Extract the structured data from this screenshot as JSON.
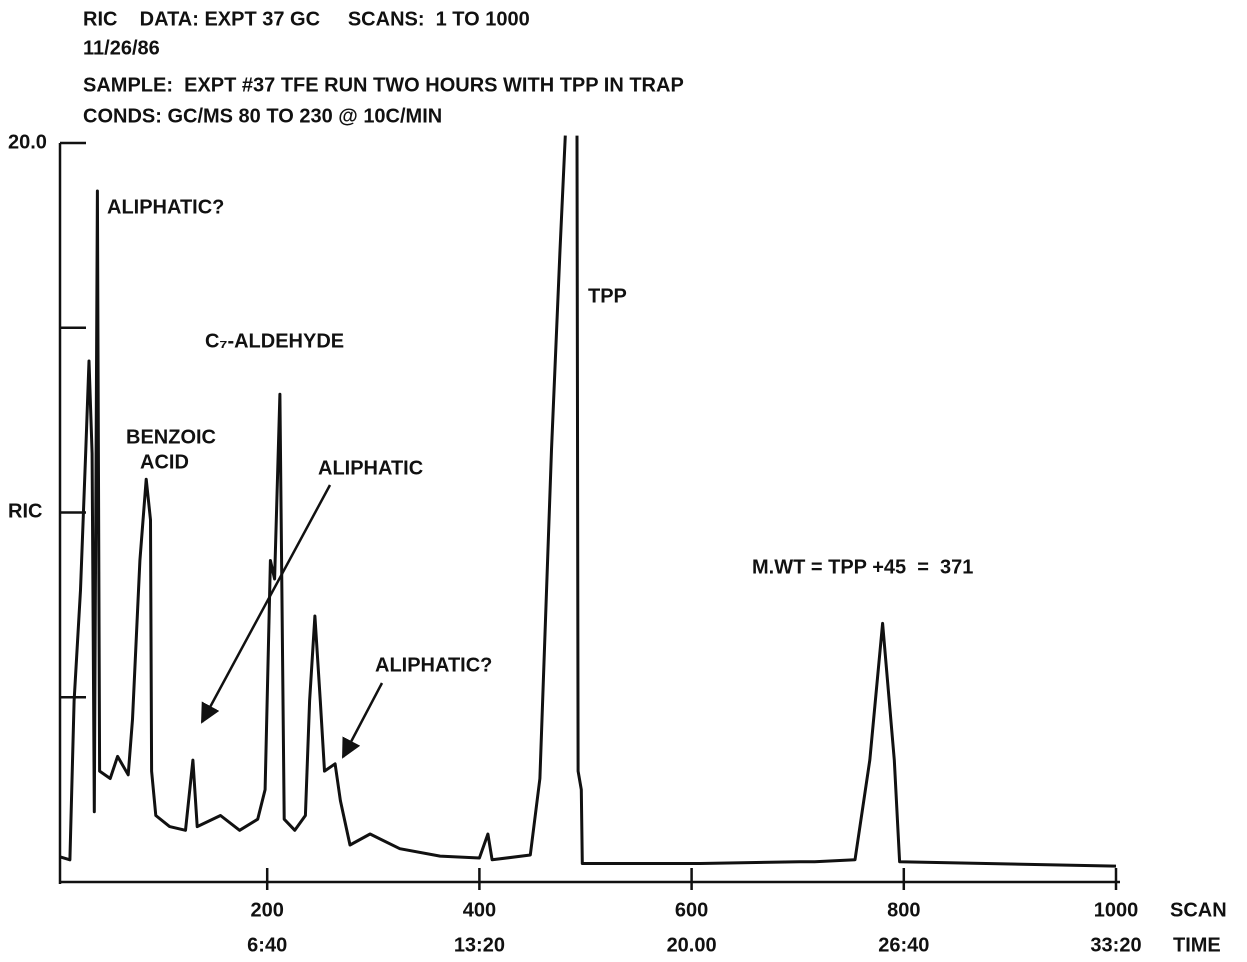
{
  "chart_data": {
    "type": "line",
    "title_lines": [
      "RIC    DATA: EXPT 37 GC     SCANS:  1 TO 1000",
      "11/26/86",
      "SAMPLE:  EXPT #37 TFE RUN TWO HOURS WITH TPP IN TRAP",
      "CONDS: GC/MS 80 TO 230 @ 10C/MIN"
    ],
    "y_label": "RIC",
    "x_label": "SCAN",
    "x2_label": "TIME",
    "x": [
      5,
      14,
      18,
      24,
      29,
      32,
      35,
      37,
      40,
      42,
      52,
      59,
      69,
      73,
      80,
      86,
      90,
      91,
      95,
      108,
      123,
      130,
      134,
      156,
      174,
      191,
      198,
      203,
      207,
      212,
      216,
      226,
      236,
      240,
      245,
      250,
      254,
      264,
      269,
      278,
      297,
      325,
      363,
      400,
      408,
      412,
      448,
      457,
      468,
      476,
      481,
      486,
      492,
      493,
      496,
      497,
      608,
      702,
      716,
      754,
      768,
      780,
      791,
      796,
      1000
    ],
    "values": [
      0.68,
      0.6,
      4.9,
      7.9,
      11.7,
      14.1,
      11.6,
      1.9,
      18.7,
      3.0,
      2.8,
      3.4,
      2.9,
      4.4,
      8.7,
      10.9,
      9.8,
      3.0,
      1.8,
      1.5,
      1.4,
      3.3,
      1.5,
      1.8,
      1.4,
      1.7,
      2.5,
      8.7,
      8.2,
      13.2,
      1.7,
      1.4,
      1.8,
      4.9,
      7.2,
      4.9,
      3.0,
      3.2,
      2.2,
      1.0,
      1.3,
      0.9,
      0.7,
      0.65,
      1.3,
      0.6,
      0.73,
      2.8,
      11.7,
      17.1,
      20.2,
      null,
      20.2,
      3.0,
      2.5,
      0.5,
      0.5,
      0.55,
      0.55,
      0.6,
      3.3,
      7.0,
      3.3,
      0.55,
      0.43
    ],
    "color": "#111111",
    "xlim": [
      0,
      1000
    ],
    "xticks": [
      200,
      400,
      600,
      800,
      1000
    ],
    "time_labels": [
      "6:40",
      "13:20",
      "20.00",
      "26:40",
      "33:20"
    ],
    "ylim": [
      0,
      20
    ],
    "yticks": [
      {
        "value": 20,
        "label": "20.0"
      }
    ],
    "minor_yticks": [
      5,
      10,
      15
    ],
    "annotations": [
      "ALIPHATIC?",
      "BENZOIC",
      "ACID",
      "C₇-ALDEHYDE",
      "ALIPHATIC",
      "ALIPHATIC?",
      "TPP",
      "M.WT = TPP +45  =  371"
    ]
  }
}
